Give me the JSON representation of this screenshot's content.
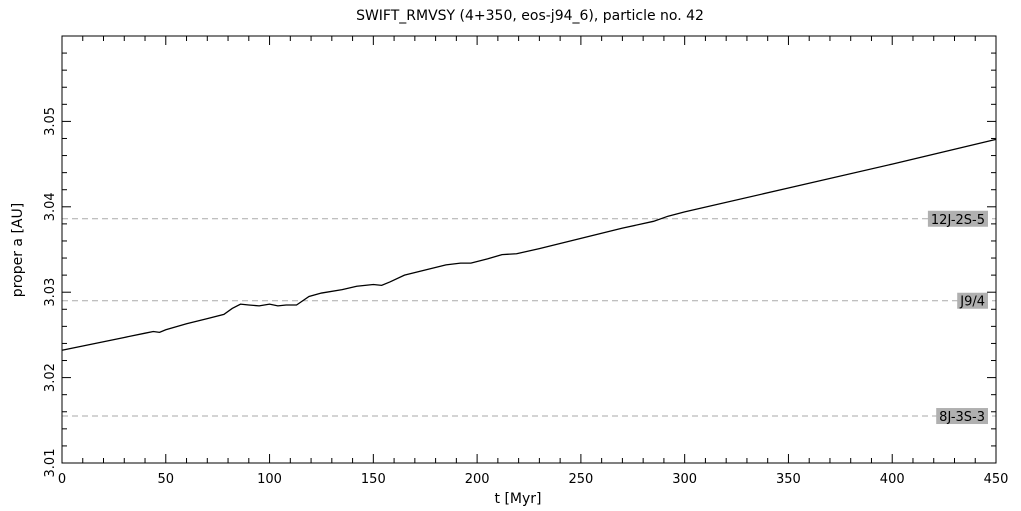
{
  "chart_data": {
    "type": "line",
    "title": "SWIFT_RMVSY (4+350, eos-j94_6), particle no. 42",
    "xlabel": "t [Myr]",
    "ylabel": "proper a [AU]",
    "xlim": [
      0,
      450
    ],
    "ylim": [
      3.01,
      3.06
    ],
    "xticks": [
      0,
      50,
      100,
      150,
      200,
      250,
      300,
      350,
      400,
      450
    ],
    "xtick_labels": [
      "0",
      "50",
      "100",
      "150",
      "200",
      "250",
      "300",
      "350",
      "400",
      "450"
    ],
    "yticks": [
      3.01,
      3.02,
      3.03,
      3.04,
      3.05
    ],
    "ytick_labels": [
      "3.01",
      "3.02",
      "3.03",
      "3.04",
      "3.05"
    ],
    "grid": false,
    "series": [
      {
        "color": "#000000",
        "x": [
          0,
          10,
          20,
          30,
          40,
          44,
          47,
          50,
          60,
          70,
          78,
          82,
          86,
          90,
          95,
          100,
          104,
          108,
          113,
          116,
          119,
          125,
          135,
          142,
          150,
          154,
          158,
          165,
          175,
          185,
          192,
          197,
          205,
          212,
          219,
          230,
          250,
          270,
          285,
          292,
          300,
          350,
          400,
          450
        ],
        "y": [
          3.0232,
          3.0237,
          3.0242,
          3.0247,
          3.0252,
          3.0254,
          3.0253,
          3.0256,
          3.0263,
          3.0269,
          3.0274,
          3.0281,
          3.0286,
          3.0285,
          3.0284,
          3.0286,
          3.0284,
          3.0285,
          3.0285,
          3.029,
          3.0295,
          3.0299,
          3.0303,
          3.0307,
          3.0309,
          3.0308,
          3.0312,
          3.032,
          3.0326,
          3.0332,
          3.0334,
          3.0334,
          3.0339,
          3.0344,
          3.0345,
          3.0351,
          3.0363,
          3.0375,
          3.0383,
          3.0389,
          3.0394,
          3.0422,
          3.045,
          3.0479
        ]
      }
    ],
    "resonances": [
      {
        "label": "12J-2S-5",
        "a": 3.0386
      },
      {
        "label": "J9/4",
        "a": 3.029
      },
      {
        "label": "8J-3S-3",
        "a": 3.0155
      }
    ],
    "resonance_line_color": "#aaaaaa",
    "resonance_label_bg": "#b0b0b0"
  }
}
